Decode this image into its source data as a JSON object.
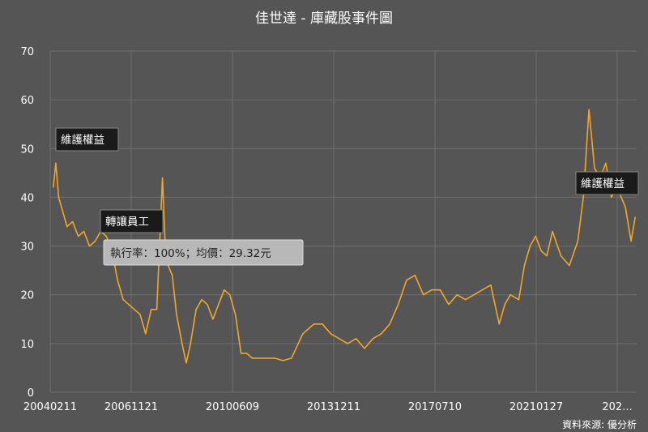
{
  "chart_data": {
    "type": "line",
    "title": "佳世達 - 庫藏股事件圖",
    "source": "資料來源: 優分析",
    "ylim": [
      0,
      70
    ],
    "yticks": [
      "0",
      "10",
      "20",
      "30",
      "40",
      "50",
      "60",
      "70"
    ],
    "xticks": [
      "20040211",
      "20061121",
      "20100609",
      "20131211",
      "20170710",
      "20210127",
      "202..."
    ],
    "grid": true,
    "colors": {
      "background": "#555555",
      "line": "#f5a623",
      "grid": "#6e6e6e",
      "text": "#ffffff"
    },
    "series": [
      {
        "x": [
          2004.11,
          2004.2,
          2004.3,
          2004.45,
          2004.6,
          2004.8,
          2005.0,
          2005.2,
          2005.4,
          2005.6,
          2005.8,
          2006.0,
          2006.2,
          2006.4,
          2006.6,
          2006.8,
          2007.0,
          2007.2,
          2007.4,
          2007.6,
          2007.8,
          2008.0,
          2008.1,
          2008.2,
          2008.35,
          2008.5,
          2008.7,
          2008.85,
          2009.0,
          2009.2,
          2009.4,
          2009.6,
          2009.8,
          2010.0,
          2010.2,
          2010.4,
          2010.6,
          2010.8,
          2011.0,
          2011.2,
          2011.4,
          2011.6,
          2011.8,
          2012.0,
          2012.3,
          2012.6,
          2013.0,
          2013.4,
          2013.7,
          2014.0,
          2014.3,
          2014.6,
          2014.9,
          2015.2,
          2015.5,
          2015.8,
          2016.1,
          2016.4,
          2016.7,
          2017.0,
          2017.3,
          2017.6,
          2017.9,
          2018.2,
          2018.5,
          2018.8,
          2019.1,
          2019.4,
          2019.7,
          2020.0,
          2020.2,
          2020.4,
          2020.7,
          2020.9,
          2021.1,
          2021.3,
          2021.5,
          2021.7,
          2021.9,
          2022.2,
          2022.5,
          2022.8,
          2023.0,
          2023.2,
          2023.4,
          2023.6,
          2023.8,
          2024.0,
          2024.2,
          2024.5,
          2024.7,
          2024.85
        ],
        "y": [
          42,
          47,
          40,
          37,
          34,
          35,
          32,
          33,
          30,
          31,
          33,
          32,
          29,
          23,
          19,
          18,
          17,
          16,
          12,
          17,
          17,
          44,
          30,
          26,
          24,
          16,
          10,
          6,
          10,
          17,
          19,
          18,
          15,
          18,
          21,
          20,
          16,
          8,
          8,
          7,
          7,
          7,
          7,
          7,
          6.5,
          7,
          12,
          14,
          14,
          12,
          11,
          10,
          11,
          9,
          11,
          12,
          14,
          18,
          23,
          24,
          20,
          21,
          21,
          18,
          20,
          19,
          20,
          21,
          22,
          14,
          18,
          20,
          19,
          26,
          30,
          32,
          29,
          28,
          33,
          28,
          26,
          31,
          40,
          58,
          46,
          44,
          47,
          40,
          42,
          38,
          31,
          36
        ]
      }
    ],
    "annotations": [
      {
        "label": "維護權益",
        "x": 2004.11
      },
      {
        "label": "轉讓員工",
        "x": 2006.4,
        "detail": "執行率：100%；均價：29.32元"
      },
      {
        "label": "維護權益",
        "x": 2024.4
      }
    ]
  }
}
